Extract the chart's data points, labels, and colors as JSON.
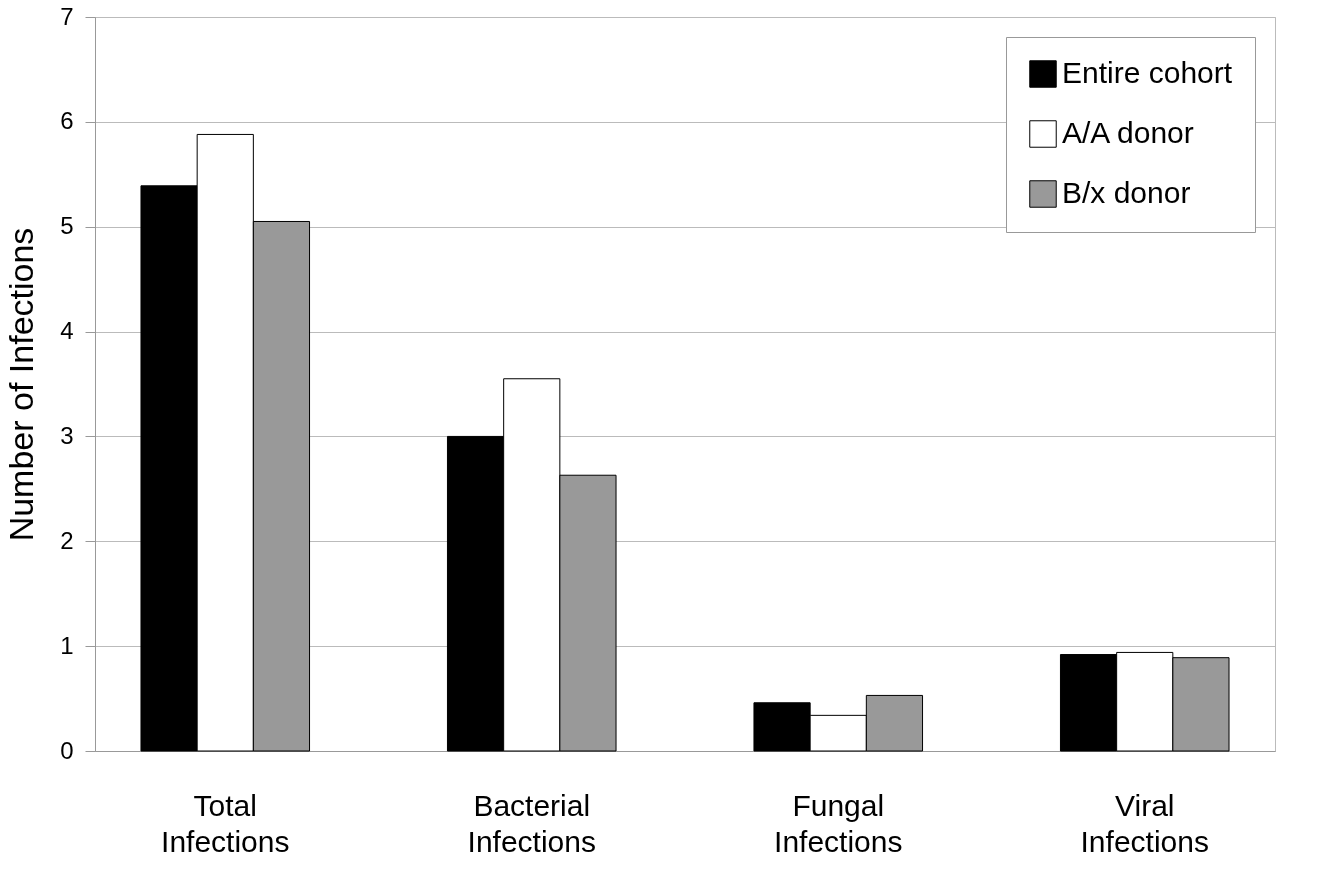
{
  "chart_data": {
    "type": "bar",
    "ylabel": "Number of Infections",
    "categories": [
      "Total Infections",
      "Bacterial Infections",
      "Fungal Infections",
      "Viral Infections"
    ],
    "series": [
      {
        "name": "Entire cohort",
        "color": "#000000",
        "values": [
          5.39,
          3.0,
          0.46,
          0.92
        ]
      },
      {
        "name": "A/A donor",
        "color": "#ffffff",
        "values": [
          5.88,
          3.55,
          0.34,
          0.94
        ]
      },
      {
        "name": "B/x donor",
        "color": "#999999",
        "values": [
          5.05,
          2.63,
          0.53,
          0.89
        ]
      }
    ],
    "ylim": [
      0,
      7
    ],
    "yticks": [
      0,
      1,
      2,
      3,
      4,
      5,
      6,
      7
    ],
    "grid": "y",
    "legend": "top right"
  }
}
